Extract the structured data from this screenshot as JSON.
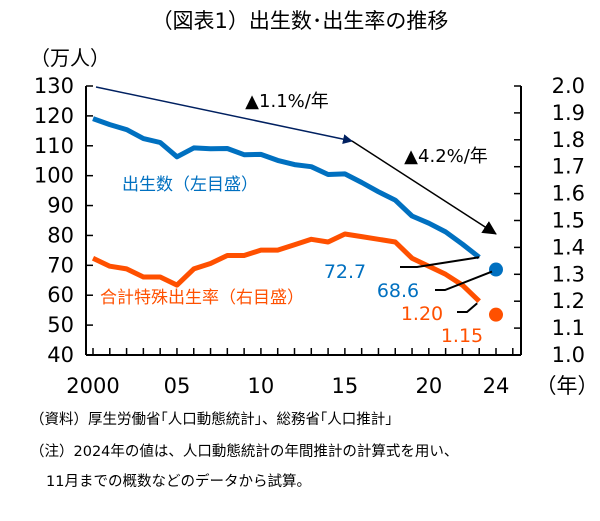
{
  "chart_data": {
    "type": "line",
    "title": "（図表1）出生数･出生率の推移",
    "left_axis": {
      "unit_label": "（万人）",
      "ylim": [
        40,
        130
      ],
      "ticks": [
        40,
        50,
        60,
        70,
        80,
        90,
        100,
        110,
        120,
        130
      ],
      "tick_labels": [
        "40",
        "50",
        "60",
        "70",
        "80",
        "90",
        "100",
        "110",
        "120",
        "130"
      ]
    },
    "right_axis": {
      "ylim": [
        1.0,
        2.0
      ],
      "ticks": [
        1.0,
        1.1,
        1.2,
        1.3,
        1.4,
        1.5,
        1.6,
        1.7,
        1.8,
        1.9,
        2.0
      ],
      "tick_labels": [
        "1.0",
        "1.1",
        "1.2",
        "1.3",
        "1.4",
        "1.5",
        "1.6",
        "1.7",
        "1.8",
        "1.9",
        "2.0"
      ]
    },
    "x_axis": {
      "unit_label": "（年）",
      "xlim": [
        1999.5,
        2025.5
      ],
      "tick_labels": [
        {
          "x": 2000,
          "label": "2000"
        },
        {
          "x": 2005,
          "label": "05"
        },
        {
          "x": 2010,
          "label": "10"
        },
        {
          "x": 2015,
          "label": "15"
        },
        {
          "x": 2020,
          "label": "20"
        },
        {
          "x": 2024,
          "label": "24"
        }
      ]
    },
    "x": [
      2000,
      2001,
      2002,
      2003,
      2004,
      2005,
      2006,
      2007,
      2008,
      2009,
      2010,
      2011,
      2012,
      2013,
      2014,
      2015,
      2016,
      2017,
      2018,
      2019,
      2020,
      2021,
      2022,
      2023
    ],
    "series": [
      {
        "name": "出生数（左目盛）",
        "axis": "left",
        "color": "#0070C0",
        "values": [
          119.1,
          117.1,
          115.4,
          112.4,
          111.1,
          106.3,
          109.3,
          109.0,
          109.1,
          107.0,
          107.1,
          105.1,
          103.7,
          103.0,
          100.4,
          100.6,
          97.7,
          94.6,
          91.8,
          86.5,
          84.1,
          81.2,
          77.1,
          72.7
        ],
        "estimate_2024": {
          "x": 2024,
          "value": 68.6
        },
        "end_label": "72.7",
        "estimate_label": "68.6"
      },
      {
        "name": "合計特殊出生率（右目盛）",
        "axis": "right",
        "color": "#FF5000",
        "values": [
          1.36,
          1.33,
          1.32,
          1.29,
          1.29,
          1.26,
          1.32,
          1.34,
          1.37,
          1.37,
          1.39,
          1.39,
          1.41,
          1.43,
          1.42,
          1.45,
          1.44,
          1.43,
          1.42,
          1.36,
          1.33,
          1.3,
          1.26,
          1.2
        ],
        "estimate_2024": {
          "x": 2024,
          "value": 1.15
        },
        "end_label": "1.20",
        "estimate_label": "1.15"
      }
    ],
    "annotations": [
      {
        "type": "trend-arrow",
        "label": "▲1.1%/年",
        "color": "#002060",
        "from": {
          "x": 2000,
          "y": 130
        },
        "to": {
          "x": 2015,
          "y": 112
        }
      },
      {
        "type": "trend-arrow",
        "label": "▲4.2%/年",
        "color": "#000000",
        "from": {
          "x": 2015,
          "y": 112
        },
        "to": {
          "x": 2024,
          "y": 81
        }
      }
    ],
    "grid": false,
    "legend": "inline labels"
  },
  "notes": {
    "source": "（資料）厚生労働省｢人口動態統計｣、総務省｢人口推計｣",
    "note_line1": "（注）2024年の値は、人口動態統計の年間推計の計算式を用い、",
    "note_line2": "11月までの概数などのデータから試算。"
  }
}
